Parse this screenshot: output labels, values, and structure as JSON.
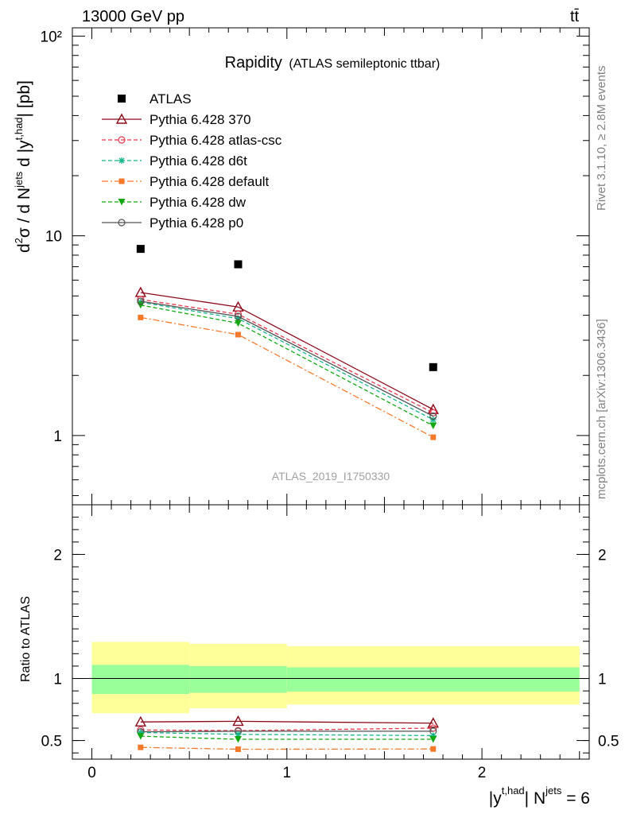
{
  "header": {
    "left": "13000 GeV pp",
    "right": "tt̄"
  },
  "side_labels": {
    "rivet": "Rivet 3.1.10, ≥ 2.8M events",
    "mcplots": "mcplots.cern.ch [arXiv:1306.3436]"
  },
  "chart_title": {
    "main": "Rapidity",
    "sub": "(ATLAS semileptonic ttbar)"
  },
  "watermark": "ATLAS_2019_I1750330",
  "axis": {
    "y_main_label": "d²σ / d N^jets d |y^t,had| [pb]",
    "y_main_parts": {
      "d": "d",
      "sq": "2",
      "sigma": "σ / d N",
      "jets": "jets",
      "d2": " d |y",
      "thad": "t,had",
      "pb": "| [pb]"
    },
    "y_ratio_label": "Ratio to ATLAS",
    "x_label_parts": {
      "pre": "|y",
      "sup1": "t,had",
      "mid": "| N",
      "sup2": "jets",
      "post": " = 6"
    }
  },
  "colors": {
    "ATLAS": "#000000",
    "p370": "#8b0a1a",
    "atlas_csc": "#e8364a",
    "d6t": "#13b58b",
    "default": "#f5792a",
    "dw": "#11a811",
    "p0": "#505050",
    "band_inner": "#99ff99",
    "band_outer": "#ffff99"
  },
  "chart_data": [
    {
      "type": "line",
      "name": "main",
      "yscale": "log",
      "xlim": [
        -0.1,
        2.55
      ],
      "ylim": [
        0.45,
        110
      ],
      "y_ticks": [
        {
          "v": 1,
          "label": "1"
        },
        {
          "v": 10,
          "label": "10"
        },
        {
          "v": 100,
          "label": "10²"
        }
      ],
      "legend_position": "top-left",
      "series": [
        {
          "name": "ATLAS",
          "key": "ATLAS",
          "marker": "square",
          "line": "none",
          "x": [
            0.25,
            0.75,
            1.75
          ],
          "y": [
            8.6,
            7.2,
            2.2
          ]
        },
        {
          "name": "Pythia 6.428 370",
          "key": "p370",
          "marker": "triangle-open",
          "line": "solid",
          "x": [
            0.25,
            0.75,
            1.75
          ],
          "y": [
            5.2,
            4.4,
            1.35
          ]
        },
        {
          "name": "Pythia 6.428 atlas-csc",
          "key": "atlas_csc",
          "marker": "circle-open",
          "line": "dashed",
          "x": [
            0.25,
            0.75,
            1.75
          ],
          "y": [
            4.8,
            4.05,
            1.3
          ]
        },
        {
          "name": "Pythia 6.428 d6t",
          "key": "d6t",
          "marker": "star",
          "line": "dashed",
          "x": [
            0.25,
            0.75,
            1.75
          ],
          "y": [
            4.65,
            3.85,
            1.2
          ]
        },
        {
          "name": "Pythia 6.428 default",
          "key": "default",
          "marker": "square-small",
          "line": "dashdot",
          "x": [
            0.25,
            0.75,
            1.75
          ],
          "y": [
            3.9,
            3.2,
            0.98
          ]
        },
        {
          "name": "Pythia 6.428 dw",
          "key": "dw",
          "marker": "triangle-down",
          "line": "dashed",
          "x": [
            0.25,
            0.75,
            1.75
          ],
          "y": [
            4.5,
            3.65,
            1.12
          ]
        },
        {
          "name": "Pythia 6.428 p0",
          "key": "p0",
          "marker": "circle-open",
          "line": "solid",
          "x": [
            0.25,
            0.75,
            1.75
          ],
          "y": [
            4.7,
            3.95,
            1.25
          ]
        }
      ]
    },
    {
      "type": "line",
      "name": "ratio",
      "xlim": [
        -0.1,
        2.55
      ],
      "ylim": [
        0.35,
        2.4
      ],
      "x_ticks": [
        0,
        1,
        2
      ],
      "y_ticks": [
        0.5,
        1,
        2
      ],
      "bands": [
        {
          "x0": 0,
          "x1": 0.5,
          "inner": [
            0.875,
            1.11
          ],
          "outer": [
            0.72,
            1.295
          ]
        },
        {
          "x0": 0.5,
          "x1": 1,
          "inner": [
            0.885,
            1.1
          ],
          "outer": [
            0.76,
            1.28
          ]
        },
        {
          "x0": 1,
          "x1": 2.5,
          "inner": [
            0.895,
            1.09
          ],
          "outer": [
            0.79,
            1.26
          ]
        }
      ],
      "series": [
        {
          "key": "p370",
          "marker": "triangle-open",
          "line": "solid",
          "x": [
            0.25,
            0.75,
            1.75
          ],
          "y": [
            0.65,
            0.655,
            0.64
          ]
        },
        {
          "key": "atlas_csc",
          "marker": "circle-open",
          "line": "dashed",
          "x": [
            0.25,
            0.75,
            1.75
          ],
          "y": [
            0.585,
            0.58,
            0.6
          ]
        },
        {
          "key": "p0",
          "marker": "circle-open",
          "line": "solid",
          "x": [
            0.25,
            0.75,
            1.75
          ],
          "y": [
            0.57,
            0.575,
            0.575
          ]
        },
        {
          "key": "d6t",
          "marker": "star",
          "line": "dashed",
          "x": [
            0.25,
            0.75,
            1.75
          ],
          "y": [
            0.565,
            0.55,
            0.54
          ]
        },
        {
          "key": "dw",
          "marker": "triangle-down",
          "line": "dashed",
          "x": [
            0.25,
            0.75,
            1.75
          ],
          "y": [
            0.535,
            0.51,
            0.51
          ]
        },
        {
          "key": "default",
          "marker": "square-small",
          "line": "dashdot",
          "x": [
            0.25,
            0.75,
            1.75
          ],
          "y": [
            0.445,
            0.43,
            0.432
          ]
        }
      ]
    }
  ]
}
